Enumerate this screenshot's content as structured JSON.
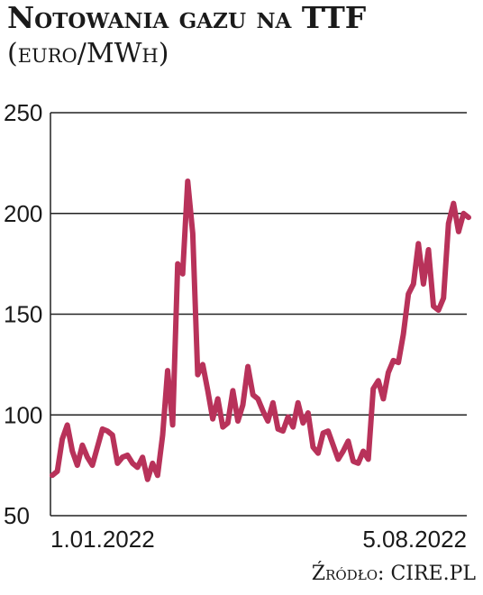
{
  "title": "Notowania gazu na TTF",
  "subtitle": "(euro/MWh)",
  "source": "Źródło: CIRE.PL",
  "colors": {
    "line": "#b8325a",
    "grid": "#222222",
    "text": "#1a1a1a"
  },
  "chart_data": {
    "type": "line",
    "title": "Notowania gazu na TTF",
    "ylabel": "euro/MWh",
    "ylim": [
      50,
      250
    ],
    "yticks": [
      250,
      200,
      150,
      100,
      50
    ],
    "x_tick_labels": [
      "1.01.2022",
      "5.08.2022"
    ],
    "grid": true,
    "series": [
      {
        "values": [
          70,
          72,
          88,
          95,
          82,
          75,
          85,
          79,
          75,
          84,
          93,
          92,
          90,
          76,
          79,
          80,
          76,
          74,
          79,
          68,
          76,
          70,
          90,
          122,
          95,
          175,
          170,
          216,
          190,
          120,
          125,
          112,
          98,
          108,
          94,
          96,
          112,
          97,
          105,
          124,
          110,
          108,
          102,
          97,
          106,
          93,
          92,
          99,
          94,
          106,
          96,
          101,
          84,
          81,
          91,
          92,
          85,
          78,
          82,
          87,
          77,
          76,
          82,
          78,
          113,
          117,
          108,
          121,
          127,
          126,
          140,
          160,
          165,
          185,
          165,
          182,
          154,
          152,
          158,
          195,
          205,
          191,
          200,
          198
        ]
      }
    ]
  }
}
